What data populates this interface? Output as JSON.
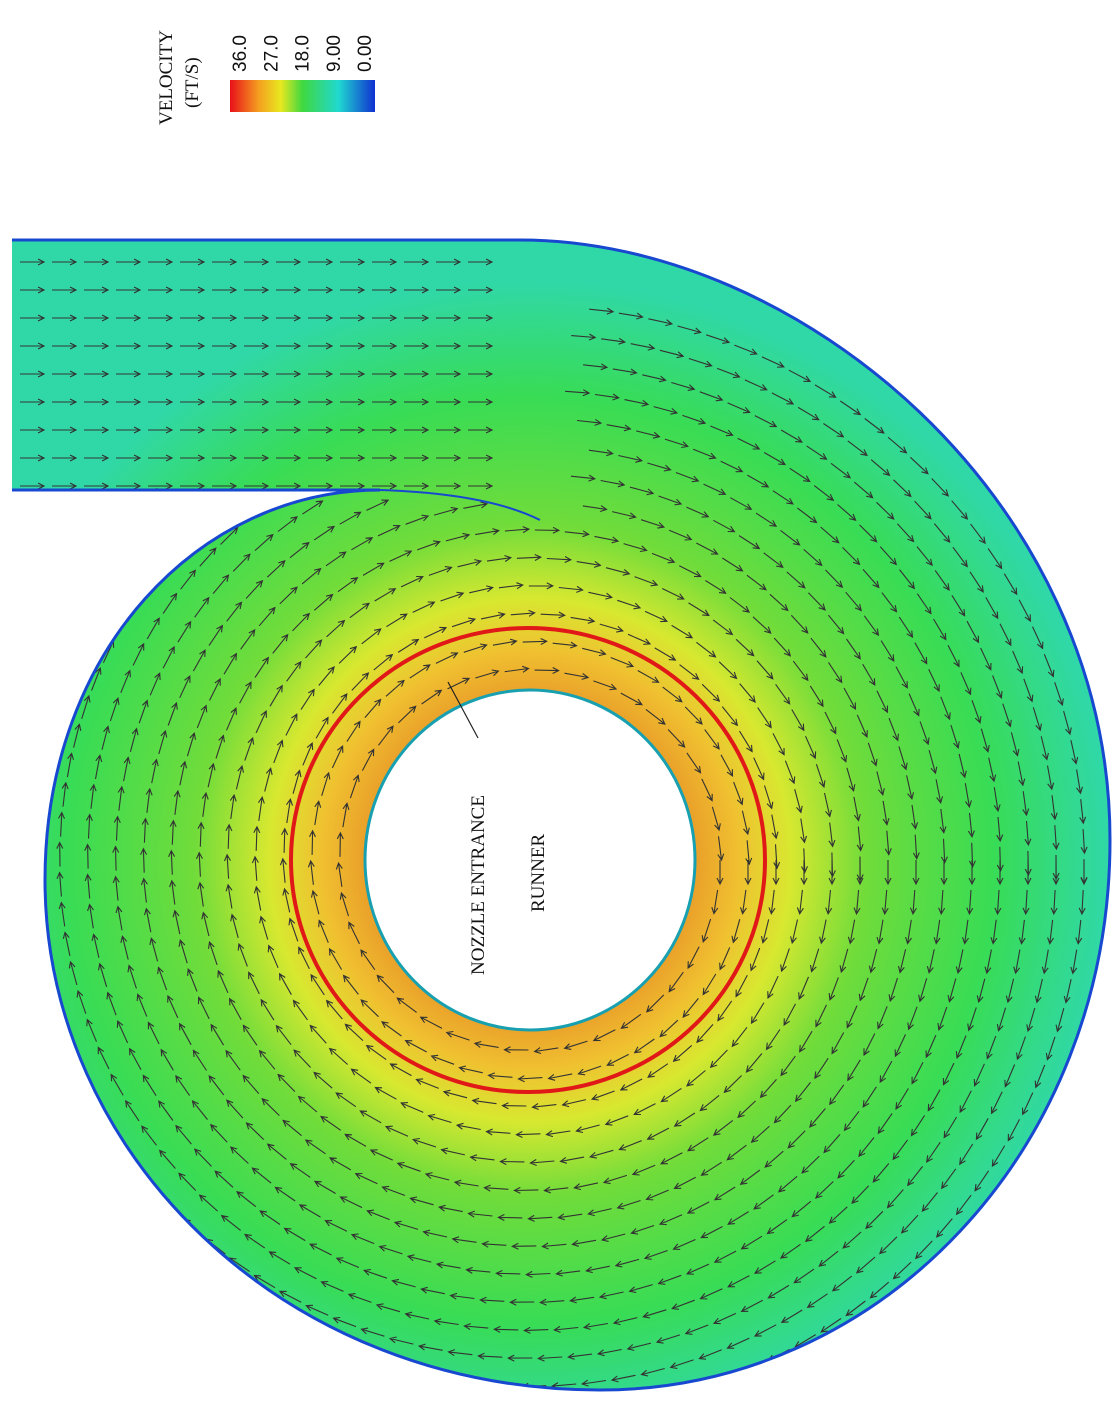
{
  "legend": {
    "title": "VELOCITY",
    "unit": "(FT/S)",
    "ticks": [
      "36.0",
      "27.0",
      "18.0",
      "9.00",
      "0.00"
    ]
  },
  "labels": {
    "nozzle": "NOZZLE ENTRANCE",
    "runner": "RUNNER"
  }
}
